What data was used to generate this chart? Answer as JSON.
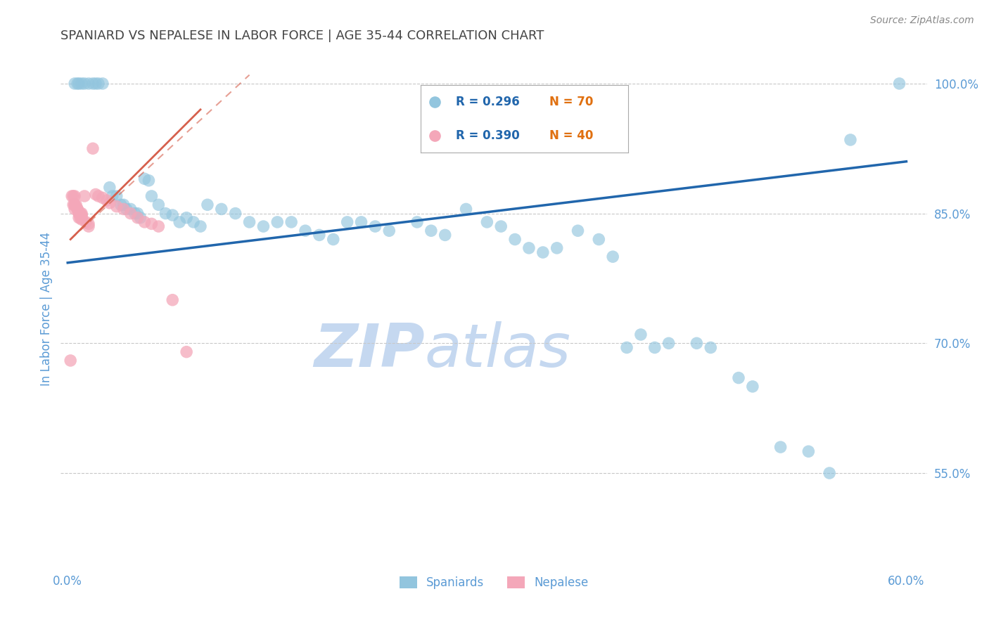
{
  "title": "SPANIARD VS NEPALESE IN LABOR FORCE | AGE 35-44 CORRELATION CHART",
  "source_text": "Source: ZipAtlas.com",
  "ylabel": "In Labor Force | Age 35-44",
  "xlim": [
    -0.005,
    0.615
  ],
  "ylim": [
    0.44,
    1.04
  ],
  "xtick_positions": [
    0.0,
    0.1,
    0.2,
    0.3,
    0.4,
    0.5,
    0.6
  ],
  "xticklabels": [
    "0.0%",
    "",
    "",
    "",
    "",
    "",
    "60.0%"
  ],
  "ytick_positions": [
    0.55,
    0.7,
    0.85,
    1.0
  ],
  "yticklabels": [
    "55.0%",
    "70.0%",
    "85.0%",
    "100.0%"
  ],
  "blue_scatter_x": [
    0.005,
    0.007,
    0.008,
    0.01,
    0.012,
    0.015,
    0.018,
    0.02,
    0.022,
    0.025,
    0.03,
    0.032,
    0.035,
    0.038,
    0.04,
    0.042,
    0.045,
    0.048,
    0.05,
    0.052,
    0.055,
    0.058,
    0.06,
    0.065,
    0.07,
    0.075,
    0.08,
    0.085,
    0.09,
    0.095,
    0.1,
    0.11,
    0.12,
    0.13,
    0.14,
    0.15,
    0.16,
    0.17,
    0.18,
    0.19,
    0.2,
    0.21,
    0.22,
    0.23,
    0.25,
    0.26,
    0.27,
    0.285,
    0.3,
    0.31,
    0.32,
    0.33,
    0.34,
    0.35,
    0.365,
    0.38,
    0.39,
    0.4,
    0.41,
    0.42,
    0.43,
    0.45,
    0.46,
    0.48,
    0.49,
    0.51,
    0.53,
    0.545,
    0.56,
    0.595
  ],
  "blue_scatter_y": [
    1.0,
    1.0,
    1.0,
    1.0,
    1.0,
    1.0,
    1.0,
    1.0,
    1.0,
    1.0,
    0.88,
    0.87,
    0.87,
    0.86,
    0.86,
    0.855,
    0.855,
    0.85,
    0.85,
    0.845,
    0.89,
    0.888,
    0.87,
    0.86,
    0.85,
    0.848,
    0.84,
    0.845,
    0.84,
    0.835,
    0.86,
    0.855,
    0.85,
    0.84,
    0.835,
    0.84,
    0.84,
    0.83,
    0.825,
    0.82,
    0.84,
    0.84,
    0.835,
    0.83,
    0.84,
    0.83,
    0.825,
    0.855,
    0.84,
    0.835,
    0.82,
    0.81,
    0.805,
    0.81,
    0.83,
    0.82,
    0.8,
    0.695,
    0.71,
    0.695,
    0.7,
    0.7,
    0.695,
    0.66,
    0.65,
    0.58,
    0.575,
    0.55,
    0.935,
    1.0
  ],
  "pink_scatter_x": [
    0.002,
    0.003,
    0.004,
    0.004,
    0.005,
    0.005,
    0.005,
    0.005,
    0.006,
    0.007,
    0.007,
    0.008,
    0.008,
    0.008,
    0.009,
    0.009,
    0.01,
    0.01,
    0.01,
    0.01,
    0.01,
    0.012,
    0.013,
    0.015,
    0.015,
    0.018,
    0.02,
    0.022,
    0.025,
    0.028,
    0.03,
    0.035,
    0.04,
    0.045,
    0.05,
    0.055,
    0.06,
    0.065,
    0.075,
    0.085
  ],
  "pink_scatter_y": [
    0.68,
    0.87,
    0.87,
    0.86,
    0.87,
    0.86,
    0.86,
    0.855,
    0.86,
    0.855,
    0.855,
    0.85,
    0.85,
    0.845,
    0.85,
    0.845,
    0.85,
    0.848,
    0.847,
    0.845,
    0.843,
    0.87,
    0.84,
    0.838,
    0.835,
    0.925,
    0.872,
    0.87,
    0.868,
    0.865,
    0.862,
    0.858,
    0.855,
    0.85,
    0.845,
    0.84,
    0.838,
    0.835,
    0.75,
    0.69
  ],
  "blue_line_x": [
    0.0,
    0.6
  ],
  "blue_line_y": [
    0.793,
    0.91
  ],
  "pink_solid_line_x": [
    0.002,
    0.095
  ],
  "pink_solid_line_y": [
    0.82,
    0.97
  ],
  "pink_dash_line_x": [
    0.002,
    0.13
  ],
  "pink_dash_line_y": [
    0.82,
    1.01
  ],
  "blue_color": "#92c5de",
  "pink_color": "#f4a7b9",
  "blue_line_color": "#2166ac",
  "pink_line_color": "#d6604d",
  "background_color": "#ffffff",
  "grid_color": "#c8c8c8",
  "title_color": "#444444",
  "axis_label_color": "#5b9bd5",
  "tick_color": "#5b9bd5",
  "watermark_zip_color": "#c5d8f0",
  "watermark_atlas_color": "#c5d8f0",
  "r_blue": "0.296",
  "n_blue": "70",
  "r_pink": "0.390",
  "n_pink": "40",
  "legend_text_color": "#2166ac",
  "legend_n_color": "#e07010"
}
